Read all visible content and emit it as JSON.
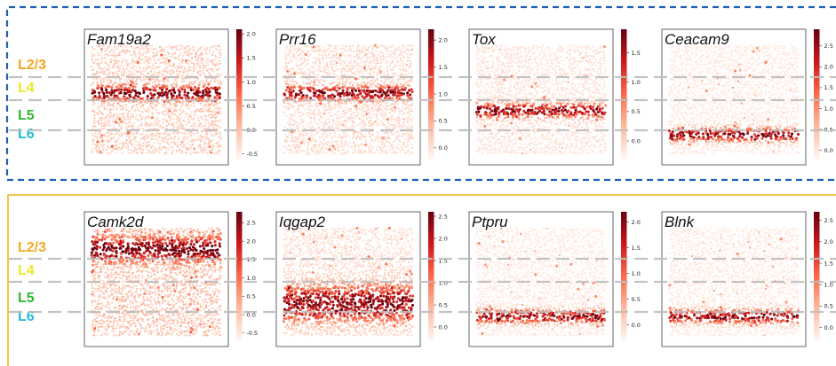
{
  "colors": {
    "top_border": "#1f5fb4",
    "bottom_border": "#f2b21b",
    "L2/3": "#f5a623",
    "L4": "#ece622",
    "L5": "#2db82d",
    "L6": "#22bcd6",
    "layer_line": "#bdbdbd",
    "colormap_low": "#fff5f0",
    "colormap_high": "#67000d"
  },
  "chart_data": [
    {
      "type": "scatter",
      "gene": "Fam19a2",
      "cbar_ticks": [
        "2.0",
        "1.5",
        "1.0",
        "0.5",
        "0.0",
        "-0.5"
      ],
      "cbar_range": [
        -0.6,
        2.1
      ],
      "enriched_layer": "L4",
      "title": ""
    },
    {
      "type": "scatter",
      "gene": "Prr16",
      "cbar_ticks": [
        "2.0",
        "1.5",
        "1.0",
        "0.5",
        "0.0"
      ],
      "cbar_range": [
        -0.2,
        2.2
      ],
      "enriched_layer": "L4",
      "title": ""
    },
    {
      "type": "scatter",
      "gene": "Tox",
      "cbar_ticks": [
        "1.5",
        "1.0",
        "0.5",
        "0.0"
      ],
      "cbar_range": [
        -0.3,
        1.9
      ],
      "enriched_layer": "L5",
      "title": ""
    },
    {
      "type": "scatter",
      "gene": "Ceacam9",
      "cbar_ticks": [
        "2.5",
        "2.0",
        "1.5",
        "1.0",
        "0.5",
        "0.0"
      ],
      "cbar_range": [
        -0.2,
        2.9
      ],
      "enriched_layer": "L6",
      "title": ""
    },
    {
      "type": "scatter",
      "gene": "Camk2d",
      "cbar_ticks": [
        "2.5",
        "2.0",
        "1.5",
        "1.0",
        "0.5",
        "0.0",
        "-0.5"
      ],
      "cbar_range": [
        -0.7,
        2.8
      ],
      "enriched_layer": "L2/3",
      "title": ""
    },
    {
      "type": "scatter",
      "gene": "Iqgap2",
      "cbar_ticks": [
        "2.5",
        "2.0",
        "1.5",
        "1.0",
        "0.5",
        "0.0"
      ],
      "cbar_range": [
        -0.3,
        2.6
      ],
      "enriched_layer": "L5-L6",
      "title": ""
    },
    {
      "type": "scatter",
      "gene": "Ptpru",
      "cbar_ticks": [
        "2.0",
        "1.5",
        "1.0",
        "0.5",
        "0.0"
      ],
      "cbar_range": [
        -0.3,
        2.2
      ],
      "enriched_layer": "L6",
      "title": ""
    },
    {
      "type": "scatter",
      "gene": "Blnk",
      "cbar_ticks": [
        "2.5",
        "2.0",
        "1.5",
        "1.0",
        "0.5",
        "0.0"
      ],
      "cbar_range": [
        -0.3,
        2.7
      ],
      "enriched_layer": "L6",
      "title": ""
    }
  ],
  "layers": {
    "top": [
      {
        "key": "L2/3",
        "label": "L2/3"
      },
      {
        "key": "L4",
        "label": "L4"
      },
      {
        "key": "L5",
        "label": "L5"
      },
      {
        "key": "L6",
        "label": "L6"
      }
    ],
    "bottom": [
      {
        "key": "L2/3",
        "label": "L2/3"
      },
      {
        "key": "L4",
        "label": "L4"
      },
      {
        "key": "L5",
        "label": "L5"
      },
      {
        "key": "L6",
        "label": "L6"
      }
    ]
  }
}
